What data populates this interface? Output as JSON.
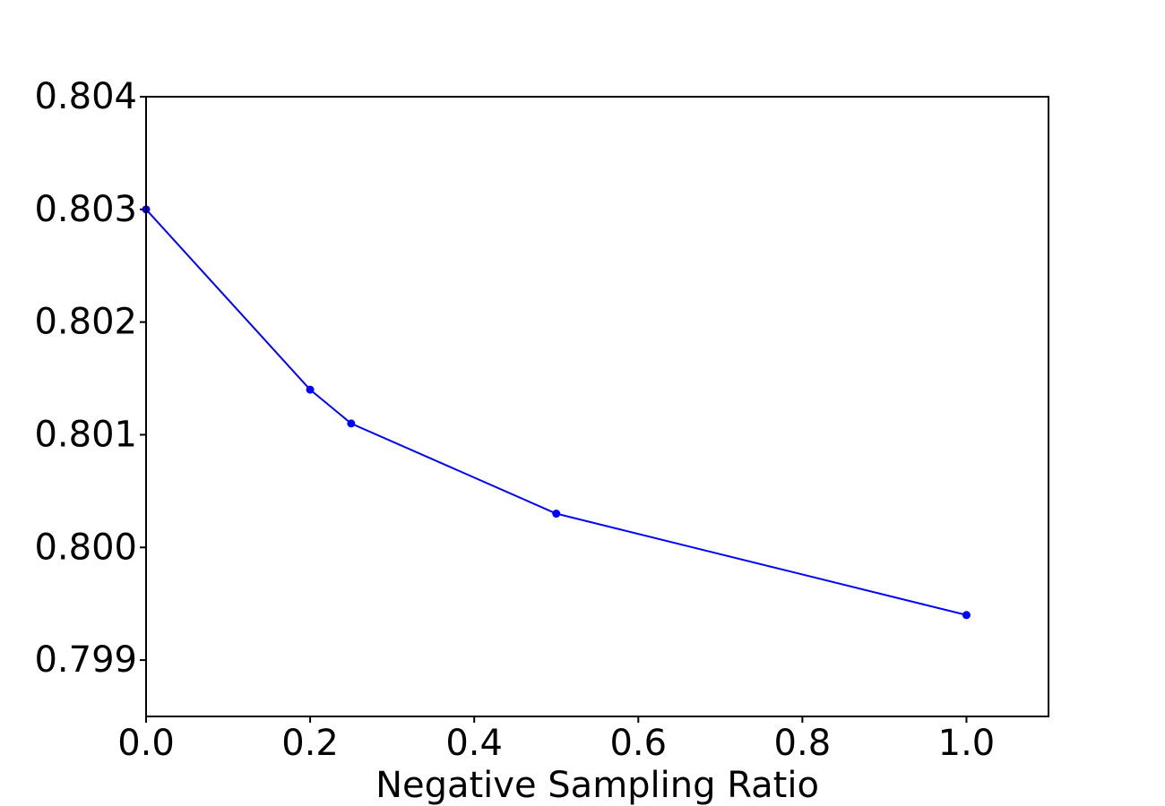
{
  "chart_data": {
    "type": "line",
    "title": "",
    "xlabel": "Negative Sampling Ratio",
    "ylabel": "",
    "xlim": [
      0.0,
      1.1
    ],
    "ylim": [
      0.7985,
      0.804
    ],
    "x_ticks": [
      0.0,
      0.2,
      0.4,
      0.6,
      0.8,
      1.0
    ],
    "x_tick_labels": [
      "0.0",
      "0.2",
      "0.4",
      "0.6",
      "0.8",
      "1.0"
    ],
    "y_ticks": [
      0.799,
      0.8,
      0.801,
      0.802,
      0.803,
      0.804
    ],
    "y_tick_labels": [
      "0.799",
      "0.800",
      "0.801",
      "0.802",
      "0.803",
      "0.804"
    ],
    "grid": false,
    "series": [
      {
        "color": "#0000ff",
        "marker": "circle",
        "x": [
          0.0,
          0.2,
          0.25,
          0.5,
          1.0
        ],
        "y": [
          0.803,
          0.8014,
          0.8011,
          0.8003,
          0.7994
        ]
      }
    ]
  }
}
